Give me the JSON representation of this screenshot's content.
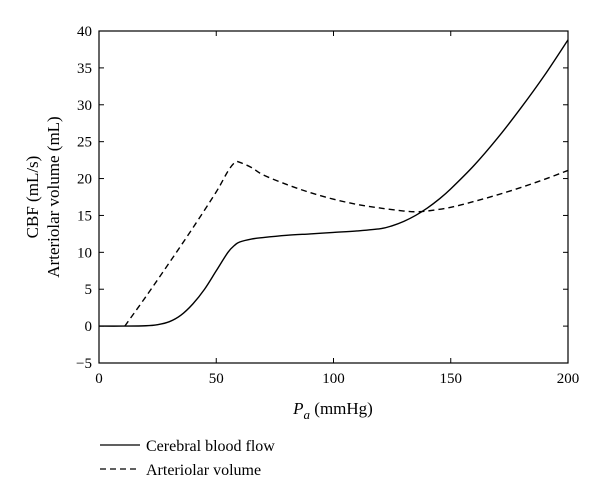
{
  "chart_data": {
    "type": "line",
    "xlabel": {
      "symbol": "P",
      "subscript": "a",
      "unit": " (mmHg)"
    },
    "ylabel": [
      "CBF (mL/s)",
      "Arteriolar volume (mL)"
    ],
    "xlim": [
      0,
      200
    ],
    "ylim": [
      -5,
      40
    ],
    "xticks": [
      "0",
      "50",
      "100",
      "150",
      "200"
    ],
    "yticks": [
      "−5",
      "0",
      "5",
      "10",
      "15",
      "20",
      "25",
      "30",
      "35",
      "40"
    ],
    "grid": false,
    "legend_position": "bottom-left, below plot",
    "series": [
      {
        "name": "Cerebral blood flow",
        "style": "solid",
        "x": [
          0,
          10,
          20,
          25,
          30,
          35,
          40,
          45,
          50,
          55,
          58,
          60,
          65,
          70,
          80,
          90,
          100,
          110,
          120,
          125,
          130,
          135,
          140,
          145,
          150,
          160,
          170,
          180,
          190,
          200
        ],
        "y": [
          0,
          0,
          0.05,
          0.2,
          0.6,
          1.5,
          3.0,
          5.0,
          7.5,
          10.0,
          11.0,
          11.4,
          11.8,
          12.0,
          12.3,
          12.5,
          12.7,
          12.9,
          13.2,
          13.6,
          14.2,
          15.0,
          16.0,
          17.2,
          18.6,
          21.8,
          25.5,
          29.6,
          34.0,
          38.8
        ]
      },
      {
        "name": "Arteriolar volume",
        "style": "dashed",
        "x": [
          11,
          20,
          30,
          40,
          50,
          55,
          58,
          60,
          65,
          70,
          80,
          90,
          100,
          110,
          120,
          130,
          135,
          140,
          150,
          160,
          170,
          180,
          190,
          200
        ],
        "y": [
          0,
          4.0,
          8.6,
          13.3,
          18.2,
          21.0,
          22.2,
          22.2,
          21.5,
          20.5,
          19.2,
          18.1,
          17.2,
          16.5,
          16.0,
          15.6,
          15.5,
          15.6,
          16.1,
          16.9,
          17.8,
          18.8,
          19.9,
          21.1
        ]
      }
    ]
  }
}
